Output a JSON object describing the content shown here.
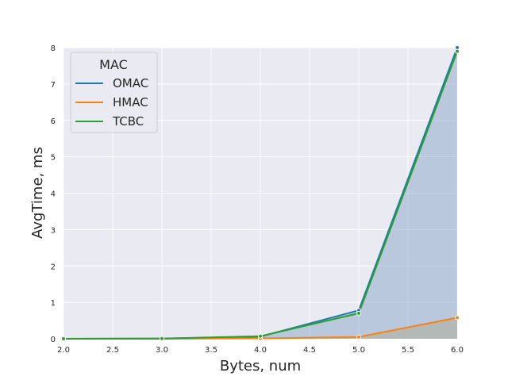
{
  "chart_data": {
    "type": "line",
    "title": "",
    "xlabel": "Bytes, num",
    "ylabel": "AvgTime, ms",
    "xlim": [
      2.0,
      6.0
    ],
    "ylim": [
      0,
      8
    ],
    "x_ticks": [
      "2.0",
      "2.5",
      "3.0",
      "3.5",
      "4.0",
      "4.5",
      "5.0",
      "5.5",
      "6.0"
    ],
    "y_ticks": [
      "0",
      "1",
      "2",
      "3",
      "4",
      "5",
      "6",
      "7",
      "8"
    ],
    "grid": true,
    "legend_title": "MAC",
    "legend_position": "top-left",
    "x": [
      2,
      3,
      4,
      5,
      6
    ],
    "series": [
      {
        "name": "OMAC",
        "color": "#1f77b4",
        "values": [
          0.001,
          0.005,
          0.06,
          0.78,
          8.0
        ]
      },
      {
        "name": "HMAC",
        "color": "#ff7f0e",
        "values": [
          0.0,
          0.001,
          0.01,
          0.05,
          0.58
        ]
      },
      {
        "name": "TCBC",
        "color": "#2ca02c",
        "values": [
          0.001,
          0.006,
          0.07,
          0.7,
          7.9
        ]
      }
    ],
    "area_fill": {
      "color": "#8aa6c8",
      "lower_color": "#b0b2a6"
    }
  }
}
